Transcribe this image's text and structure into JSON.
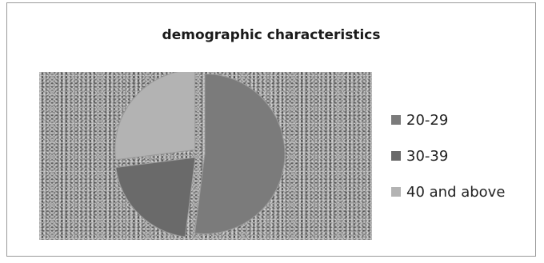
{
  "chart_data": {
    "type": "pie",
    "title": "demographic characteristics",
    "categories": [
      "20-29",
      "30-39",
      "40 and above"
    ],
    "values": [
      52,
      21,
      27
    ],
    "colors": [
      "#7b7b7b",
      "#6a6a6a",
      "#b3b3b3"
    ],
    "legend_position": "right",
    "exploded": true
  }
}
